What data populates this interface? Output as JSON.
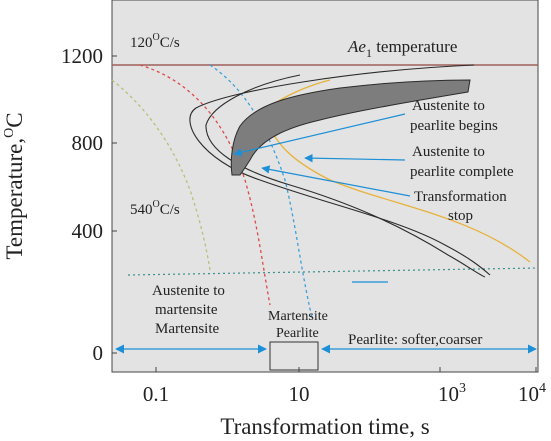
{
  "figure": {
    "xlabel": "Transformation time, s",
    "ylabel_main": "Temperature,",
    "ylabel_super": "O",
    "ylabel_end": "C",
    "y_ticks": [
      "0",
      "400",
      "800",
      "1200"
    ],
    "x_ticks": [
      {
        "base": "0.1",
        "sup": ""
      },
      {
        "base": "10",
        "sup": ""
      },
      {
        "base": "10",
        "sup": "3"
      },
      {
        "base": "10",
        "sup": "4"
      }
    ]
  },
  "annotations": {
    "rate_fast_prefix": "120",
    "rate_fast_sup": "O",
    "rate_fast_suffix": "C/s",
    "rate_slow_prefix": "540",
    "rate_slow_sup": "O",
    "rate_slow_suffix": "C/s",
    "ae1_italic": "Ae",
    "ae1_sub": "1",
    "ae1_rest": " temperature",
    "begins_line1": "Austenite to",
    "begins_line2": "pearlite begins",
    "complete_line1": "Austenite to",
    "complete_line2": "pearlite complete",
    "stop_line1": "Transformation",
    "stop_line2": "stop",
    "mart_line1": "Austenite to",
    "mart_line2": "martensite",
    "martensite": "Martensite",
    "mp_line1": "Martensite",
    "mp_line2": "Pearlite",
    "pearlite": "Pearlite: softer,coarser"
  },
  "colors": {
    "background": "#e3e3e3",
    "ae1_line": "#a0615a",
    "curves": "#2b2b2b",
    "region_fill": "#7d7d7d",
    "arrows": "#1c8fd6",
    "curve_yellow": "#e8b23a",
    "curve_red": "#e04848",
    "curve_blue": "#3aa0d8",
    "curve_olive": "#b8c07a",
    "ms_line": "#3a8f8a"
  }
}
